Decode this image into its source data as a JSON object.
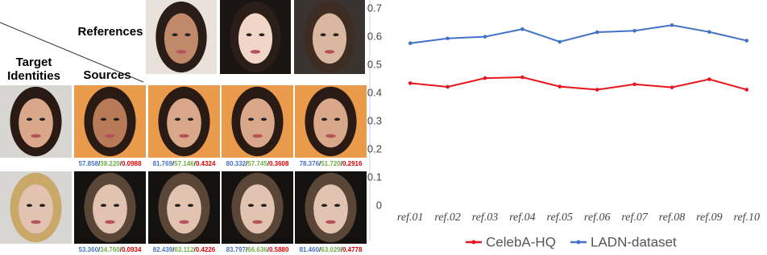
{
  "figure": {
    "references_label": "References",
    "target_label": [
      "Target",
      "Identities"
    ],
    "sources_label": "Sources",
    "separator": "/",
    "scores": [
      [
        [
          "57.858",
          "38.220",
          "0.0988"
        ],
        [
          "81.769",
          "57.146",
          "0.4324"
        ],
        [
          "80.332",
          "57.745",
          "0.3608"
        ],
        [
          "78.376",
          "51.720",
          "0.2916"
        ]
      ],
      [
        [
          "53.360",
          "34.760",
          "0.0934"
        ],
        [
          "82.439",
          "63.112",
          "0.4226"
        ],
        [
          "83.797",
          "66.636",
          "0.5880"
        ],
        [
          "81.460",
          "63.029",
          "0.4778"
        ]
      ]
    ]
  },
  "chart_data": {
    "type": "line",
    "categories": [
      "ref.01",
      "ref.02",
      "ref.03",
      "ref.04",
      "ref.05",
      "ref.06",
      "ref.07",
      "ref.08",
      "ref.09",
      "ref.10"
    ],
    "series": [
      {
        "name": "CelebA-HQ",
        "color": "#e8151b",
        "values": [
          0.436,
          0.423,
          0.454,
          0.457,
          0.424,
          0.413,
          0.432,
          0.421,
          0.45,
          0.413
        ]
      },
      {
        "name": "LADN-dataset",
        "color": "#4472c4",
        "values": [
          0.578,
          0.595,
          0.601,
          0.628,
          0.583,
          0.617,
          0.622,
          0.642,
          0.618,
          0.587
        ]
      }
    ],
    "ylim": [
      0,
      0.7
    ],
    "yticks": [
      0,
      0.1,
      0.2,
      0.3,
      0.4,
      0.5,
      0.6,
      0.7
    ],
    "grid": false,
    "legend": "bottom"
  }
}
